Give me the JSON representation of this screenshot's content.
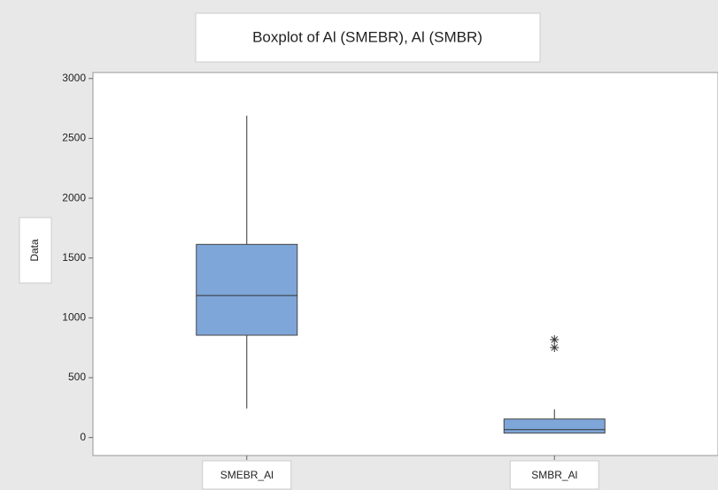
{
  "chart_data": {
    "type": "boxplot",
    "title": "Boxplot of Al (SMEBR), Al (SMBR)",
    "y_label": "Data",
    "categories": [
      "SMEBR_Al",
      "SMBR_Al"
    ],
    "boxes": [
      {
        "whisker_low": 243,
        "q1": 855,
        "median": 1187,
        "q3": 1614,
        "whisker_high": 2690,
        "outliers": []
      },
      {
        "whisker_low": 37,
        "q1": 37,
        "median": 66,
        "q3": 155,
        "whisker_high": 236,
        "outliers": [
          818,
          752
        ]
      }
    ],
    "color": "#7fa6d9",
    "ylim": [
      -150,
      3050
    ],
    "yticks": [
      0,
      500,
      1000,
      1500,
      2000,
      2500,
      3000
    ]
  }
}
